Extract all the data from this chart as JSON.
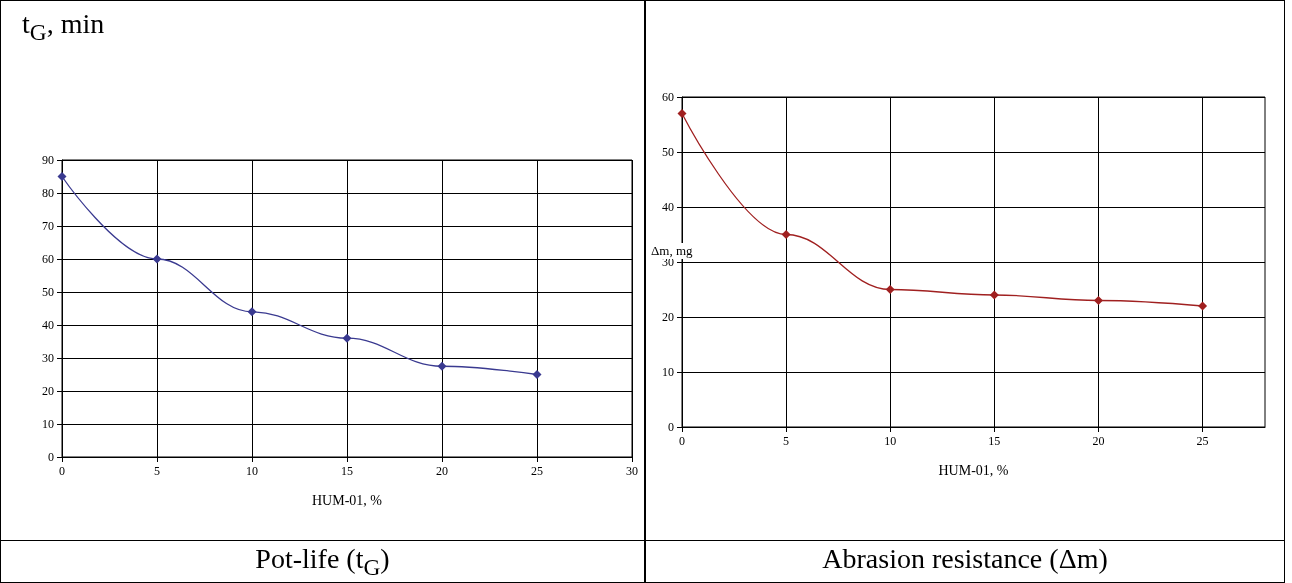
{
  "chart_data": [
    {
      "type": "line",
      "title": "Pot-life (t$_{G}$)",
      "xlabel": "HUM-01, %",
      "ylabel": "t$_{G}$, min",
      "x": [
        0,
        5,
        10,
        15,
        20,
        25
      ],
      "series": [
        {
          "color": "#3a3a90",
          "values": [
            85,
            60,
            44,
            36,
            27.5,
            25
          ]
        }
      ],
      "xlim": [
        0,
        30
      ],
      "xticks": [
        0,
        5,
        10,
        15,
        20,
        25,
        30
      ],
      "ylim": [
        0,
        90
      ],
      "yticks": [
        0,
        10,
        20,
        30,
        40,
        50,
        60,
        70,
        80,
        90
      ],
      "grid": true,
      "marker": "diamond",
      "line_style": "solid"
    },
    {
      "type": "line",
      "title": "Abrasion resistance (Δm)",
      "xlabel": "HUM-01, %",
      "ylabel": "Δm, mg",
      "x": [
        0,
        5,
        10,
        15,
        20,
        25
      ],
      "series": [
        {
          "color": "#a02020",
          "values": [
            57,
            35,
            25,
            24,
            23,
            22
          ]
        }
      ],
      "xlim": [
        0,
        28
      ],
      "xticks": [
        0,
        5,
        10,
        15,
        20,
        25
      ],
      "ylim": [
        0,
        60
      ],
      "yticks": [
        0,
        10,
        20,
        30,
        40,
        50,
        60
      ],
      "grid": true,
      "marker": "diamond",
      "line_style": "solid"
    }
  ]
}
